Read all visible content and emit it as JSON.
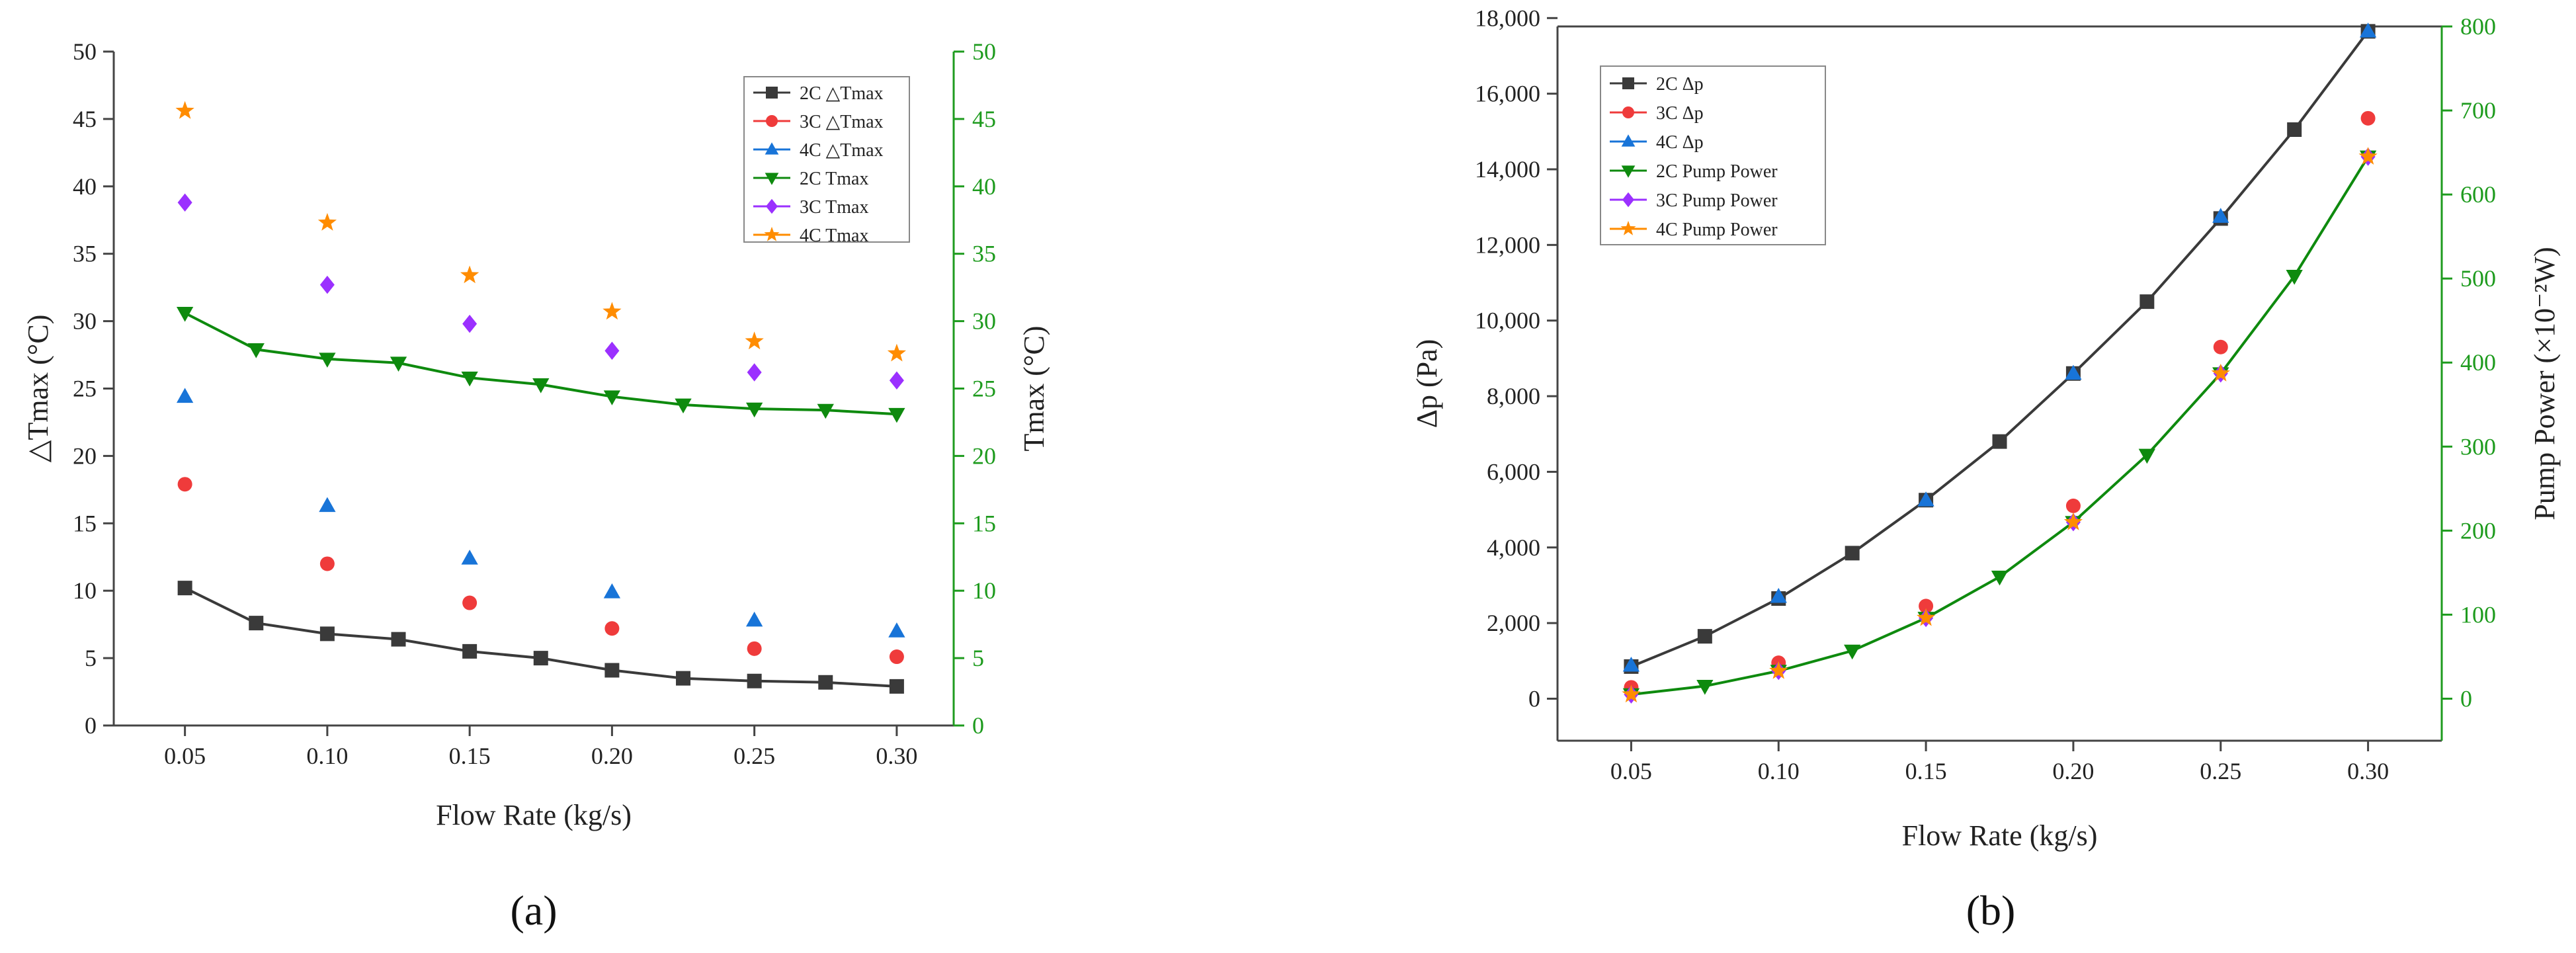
{
  "colors": {
    "black_series": "#3a3a3a",
    "red_series": "#ef3b3b",
    "blue_series": "#1874d8",
    "green_series": "#0e8a0e",
    "purple_series": "#9b30ff",
    "orange_series": "#ff8c00",
    "right_axis": "#1e9b1e",
    "left_axis": "#333333"
  },
  "chart_data": [
    {
      "type": "line",
      "panel_label": "(a)",
      "xlabel": "Flow Rate (kg/s)",
      "ylabel_left": "△Tmax (°C)",
      "ylabel_right": "Tmax (°C)",
      "xlim": [
        0.025,
        0.32
      ],
      "ylim_left": [
        0,
        50
      ],
      "ylim_right": [
        0,
        50
      ],
      "x_ticks": [
        "0.05",
        "0.10",
        "0.15",
        "0.20",
        "0.25",
        "0.30"
      ],
      "x_tick_values": [
        0.05,
        0.1,
        0.15,
        0.2,
        0.25,
        0.3
      ],
      "y_ticks_left": [
        "0",
        "5",
        "10",
        "15",
        "20",
        "25",
        "30",
        "35",
        "40",
        "45",
        "50"
      ],
      "y_ticks_right": [
        "0",
        "5",
        "10",
        "15",
        "20",
        "25",
        "30",
        "35",
        "40",
        "45",
        "50"
      ],
      "legend_position": "top-right",
      "series": [
        {
          "name": "2C △Tmax",
          "axis": "left",
          "marker": "square",
          "color": "#3a3a3a",
          "line": true,
          "x": [
            0.05,
            0.075,
            0.1,
            0.125,
            0.15,
            0.175,
            0.2,
            0.225,
            0.25,
            0.275,
            0.3
          ],
          "y": [
            10.2,
            7.6,
            6.8,
            6.4,
            5.5,
            5.0,
            4.1,
            3.5,
            3.3,
            3.2,
            2.9
          ]
        },
        {
          "name": "3C △Tmax",
          "axis": "left",
          "marker": "circle",
          "color": "#ef3b3b",
          "line": false,
          "x": [
            0.05,
            0.1,
            0.15,
            0.2,
            0.25,
            0.3
          ],
          "y": [
            17.9,
            12.0,
            9.1,
            7.2,
            5.7,
            5.1
          ]
        },
        {
          "name": "4C △Tmax",
          "axis": "left",
          "marker": "triangle",
          "color": "#1874d8",
          "line": false,
          "x": [
            0.05,
            0.1,
            0.15,
            0.2,
            0.25,
            0.3
          ],
          "y": [
            24.4,
            16.3,
            12.4,
            9.9,
            7.8,
            7.0
          ]
        },
        {
          "name": "2C Tmax",
          "axis": "right",
          "marker": "triangle-down",
          "color": "#0e8a0e",
          "line": true,
          "x": [
            0.05,
            0.075,
            0.1,
            0.125,
            0.15,
            0.175,
            0.2,
            0.225,
            0.25,
            0.275,
            0.3
          ],
          "y": [
            30.6,
            27.9,
            27.2,
            26.9,
            25.8,
            25.3,
            24.4,
            23.8,
            23.5,
            23.4,
            23.1
          ]
        },
        {
          "name": "3C Tmax",
          "axis": "right",
          "marker": "diamond",
          "color": "#9b30ff",
          "line": false,
          "x": [
            0.05,
            0.1,
            0.15,
            0.2,
            0.25,
            0.3
          ],
          "y": [
            38.8,
            32.7,
            29.8,
            27.8,
            26.2,
            25.6
          ]
        },
        {
          "name": "4C Tmax",
          "axis": "right",
          "marker": "star",
          "color": "#ff8c00",
          "line": false,
          "x": [
            0.05,
            0.1,
            0.15,
            0.2,
            0.25,
            0.3
          ],
          "y": [
            45.6,
            37.3,
            33.4,
            30.7,
            28.5,
            27.6
          ]
        }
      ]
    },
    {
      "type": "line",
      "panel_label": "(b)",
      "xlabel": "Flow Rate (kg/s)",
      "ylabel_left": "Δp (Pa)",
      "ylabel_right": "Pump Power (×10⁻²W)",
      "xlim": [
        0.025,
        0.325
      ],
      "ylim_left": [
        -1111,
        17778
      ],
      "ylim_right": [
        -50,
        800
      ],
      "x_ticks": [
        "0.05",
        "0.10",
        "0.15",
        "0.20",
        "0.25",
        "0.30"
      ],
      "x_tick_values": [
        0.05,
        0.1,
        0.15,
        0.2,
        0.25,
        0.3
      ],
      "y_ticks_left": [
        "0",
        "2,000",
        "4,000",
        "6,000",
        "8,000",
        "10,000",
        "12,000",
        "14,000",
        "16,000",
        "18,000"
      ],
      "y_tick_values_left": [
        0,
        2000,
        4000,
        6000,
        8000,
        10000,
        12000,
        14000,
        16000,
        18000
      ],
      "y_ticks_right": [
        "0",
        "100",
        "200",
        "300",
        "400",
        "500",
        "600",
        "700",
        "800"
      ],
      "y_tick_values_right": [
        0,
        100,
        200,
        300,
        400,
        500,
        600,
        700,
        800
      ],
      "legend_position": "top-left",
      "series": [
        {
          "name": "2C Δp",
          "axis": "left",
          "marker": "square",
          "color": "#3a3a3a",
          "line": true,
          "x": [
            0.05,
            0.075,
            0.1,
            0.125,
            0.15,
            0.175,
            0.2,
            0.225,
            0.25,
            0.275,
            0.3
          ],
          "y": [
            850,
            1650,
            2650,
            3850,
            5250,
            6800,
            8600,
            10500,
            12700,
            15050,
            17650
          ]
        },
        {
          "name": "3C Δp",
          "axis": "left",
          "marker": "circle",
          "color": "#ef3b3b",
          "line": false,
          "x": [
            0.05,
            0.1,
            0.15,
            0.2,
            0.25,
            0.3
          ],
          "y": [
            300,
            950,
            2450,
            5100,
            9300,
            15350
          ]
        },
        {
          "name": "4C Δp",
          "axis": "left",
          "marker": "triangle",
          "color": "#1874d8",
          "line": false,
          "x": [
            0.05,
            0.1,
            0.15,
            0.2,
            0.25,
            0.3
          ],
          "y": [
            880,
            2700,
            5250,
            8600,
            12750,
            17650
          ]
        },
        {
          "name": "2C Pump Power",
          "axis": "right",
          "marker": "triangle-down",
          "color": "#0e8a0e",
          "line": true,
          "x": [
            0.05,
            0.075,
            0.1,
            0.125,
            0.15,
            0.175,
            0.2,
            0.225,
            0.25,
            0.275,
            0.3
          ],
          "y": [
            5,
            15,
            33,
            57,
            96,
            145,
            210,
            290,
            387,
            503,
            645
          ]
        },
        {
          "name": "3C Pump Power",
          "axis": "right",
          "marker": "diamond",
          "color": "#9b30ff",
          "line": false,
          "x": [
            0.05,
            0.1,
            0.15,
            0.2,
            0.25,
            0.3
          ],
          "y": [
            5,
            33,
            96,
            210,
            387,
            645
          ]
        },
        {
          "name": "4C Pump Power",
          "axis": "right",
          "marker": "star",
          "color": "#ff8c00",
          "line": false,
          "x": [
            0.05,
            0.1,
            0.15,
            0.2,
            0.25,
            0.3
          ],
          "y": [
            5,
            33,
            96,
            210,
            387,
            645
          ]
        }
      ]
    }
  ]
}
